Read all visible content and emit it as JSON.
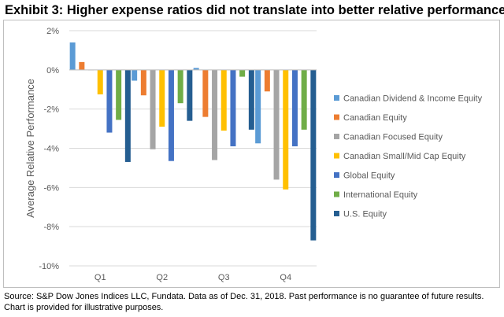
{
  "title": "Exhibit 3:  Higher expense ratios did not translate into better relative performance",
  "footnote": {
    "line1": "Source: S&P Dow Jones Indices LLC, Fundata.  Data as of Dec. 31, 2018.  Past performance is no guarantee of future results.",
    "line2": "Chart is provided for illustrative purposes."
  },
  "chart_data": {
    "type": "bar",
    "categories": [
      "Q1",
      "Q2",
      "Q3",
      "Q4"
    ],
    "ylabel": "Average Relative Performance",
    "ylim": [
      -10,
      2
    ],
    "yticks": [
      {
        "value": 2,
        "label": "2%"
      },
      {
        "value": 0,
        "label": "0%"
      },
      {
        "value": -2,
        "label": "-2%"
      },
      {
        "value": -4,
        "label": "-4%"
      },
      {
        "value": -6,
        "label": "-6%"
      },
      {
        "value": -8,
        "label": "-8%"
      },
      {
        "value": -10,
        "label": "-10%"
      }
    ],
    "grid": true,
    "legend_position": "right",
    "series": [
      {
        "name": "Canadian Dividend & Income Equity",
        "color": "#5b9bd5",
        "values": [
          1.4,
          -0.55,
          0.1,
          -3.75
        ]
      },
      {
        "name": "Canadian Equity",
        "color": "#ed7d31",
        "values": [
          0.4,
          -1.3,
          -2.4,
          -1.1
        ]
      },
      {
        "name": "Canadian Focused Equity",
        "color": "#a5a5a5",
        "values": [
          0.0,
          -4.05,
          -4.6,
          -5.6
        ]
      },
      {
        "name": "Canadian Small/Mid Cap Equity",
        "color": "#ffc000",
        "values": [
          -1.25,
          -2.9,
          -3.1,
          -6.1
        ]
      },
      {
        "name": "Global Equity",
        "color": "#4472c4",
        "values": [
          -3.2,
          -4.65,
          -3.9,
          -3.9
        ]
      },
      {
        "name": "International Equity",
        "color": "#70ad47",
        "values": [
          -2.55,
          -1.7,
          -0.35,
          -3.05
        ]
      },
      {
        "name": "U.S. Equity",
        "color": "#255e91",
        "values": [
          -4.7,
          -2.6,
          -3.05,
          -8.7
        ]
      }
    ]
  }
}
